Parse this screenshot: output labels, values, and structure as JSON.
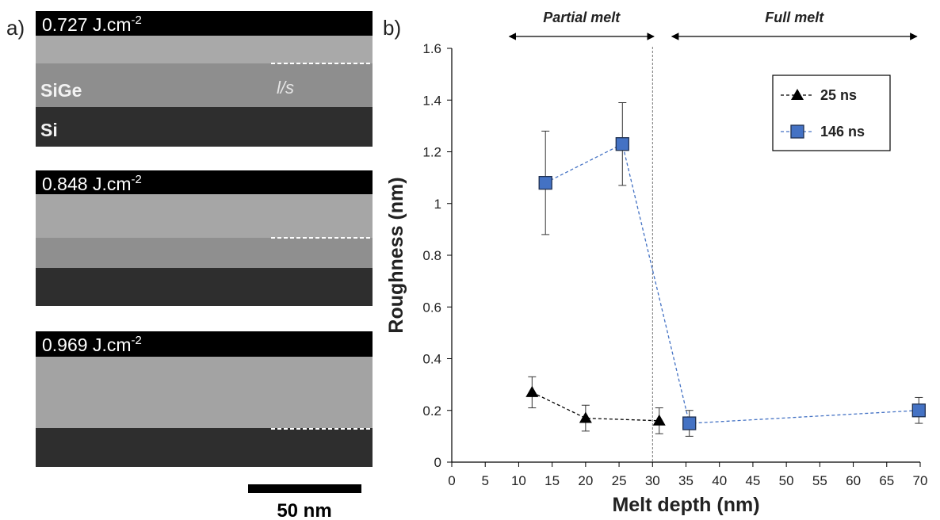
{
  "panel_a": {
    "label": "a)",
    "images": [
      {
        "fluence": "0.727 J.cm",
        "exponent": "-2"
      },
      {
        "fluence": "0.848 J.cm",
        "exponent": "-2"
      },
      {
        "fluence": "0.969 J.cm",
        "exponent": "-2"
      }
    ],
    "layer_labels": [
      "SiGe",
      "Si"
    ],
    "interface_label": "l/s",
    "scale_bar": "50 nm"
  },
  "chart_data": {
    "type": "scatter",
    "panel_label": "b)",
    "x_label": "Melt depth (nm)",
    "y_label": "Roughness (nm)",
    "xlim": [
      0,
      70
    ],
    "ylim": [
      0,
      1.6
    ],
    "xticks": [
      0,
      5,
      10,
      15,
      20,
      25,
      30,
      35,
      40,
      45,
      50,
      55,
      60,
      65,
      70
    ],
    "yticks": [
      0,
      0.2,
      0.4,
      0.6,
      0.8,
      1,
      1.2,
      1.4,
      1.6
    ],
    "grid": false,
    "legend": "upper right",
    "vline": 30,
    "regions": [
      {
        "text": "Partial melt",
        "span": [
          8.6,
          30.2
        ]
      },
      {
        "text": "Full melt",
        "span": [
          32.9,
          69.5
        ]
      }
    ],
    "series": [
      {
        "name": "25 ns",
        "color": "#000000",
        "marker": "triangle",
        "x": [
          12,
          20,
          31
        ],
        "values": [
          0.27,
          0.17,
          0.16
        ],
        "errors": [
          0.06,
          0.05,
          0.05
        ]
      },
      {
        "name": "146 ns",
        "color": "#4472c4",
        "marker": "square",
        "x": [
          14,
          25.5,
          35.5,
          69.8
        ],
        "values": [
          1.08,
          1.23,
          0.15,
          0.2
        ],
        "errors": [
          0.2,
          0.16,
          0.05,
          0.05
        ]
      }
    ]
  }
}
